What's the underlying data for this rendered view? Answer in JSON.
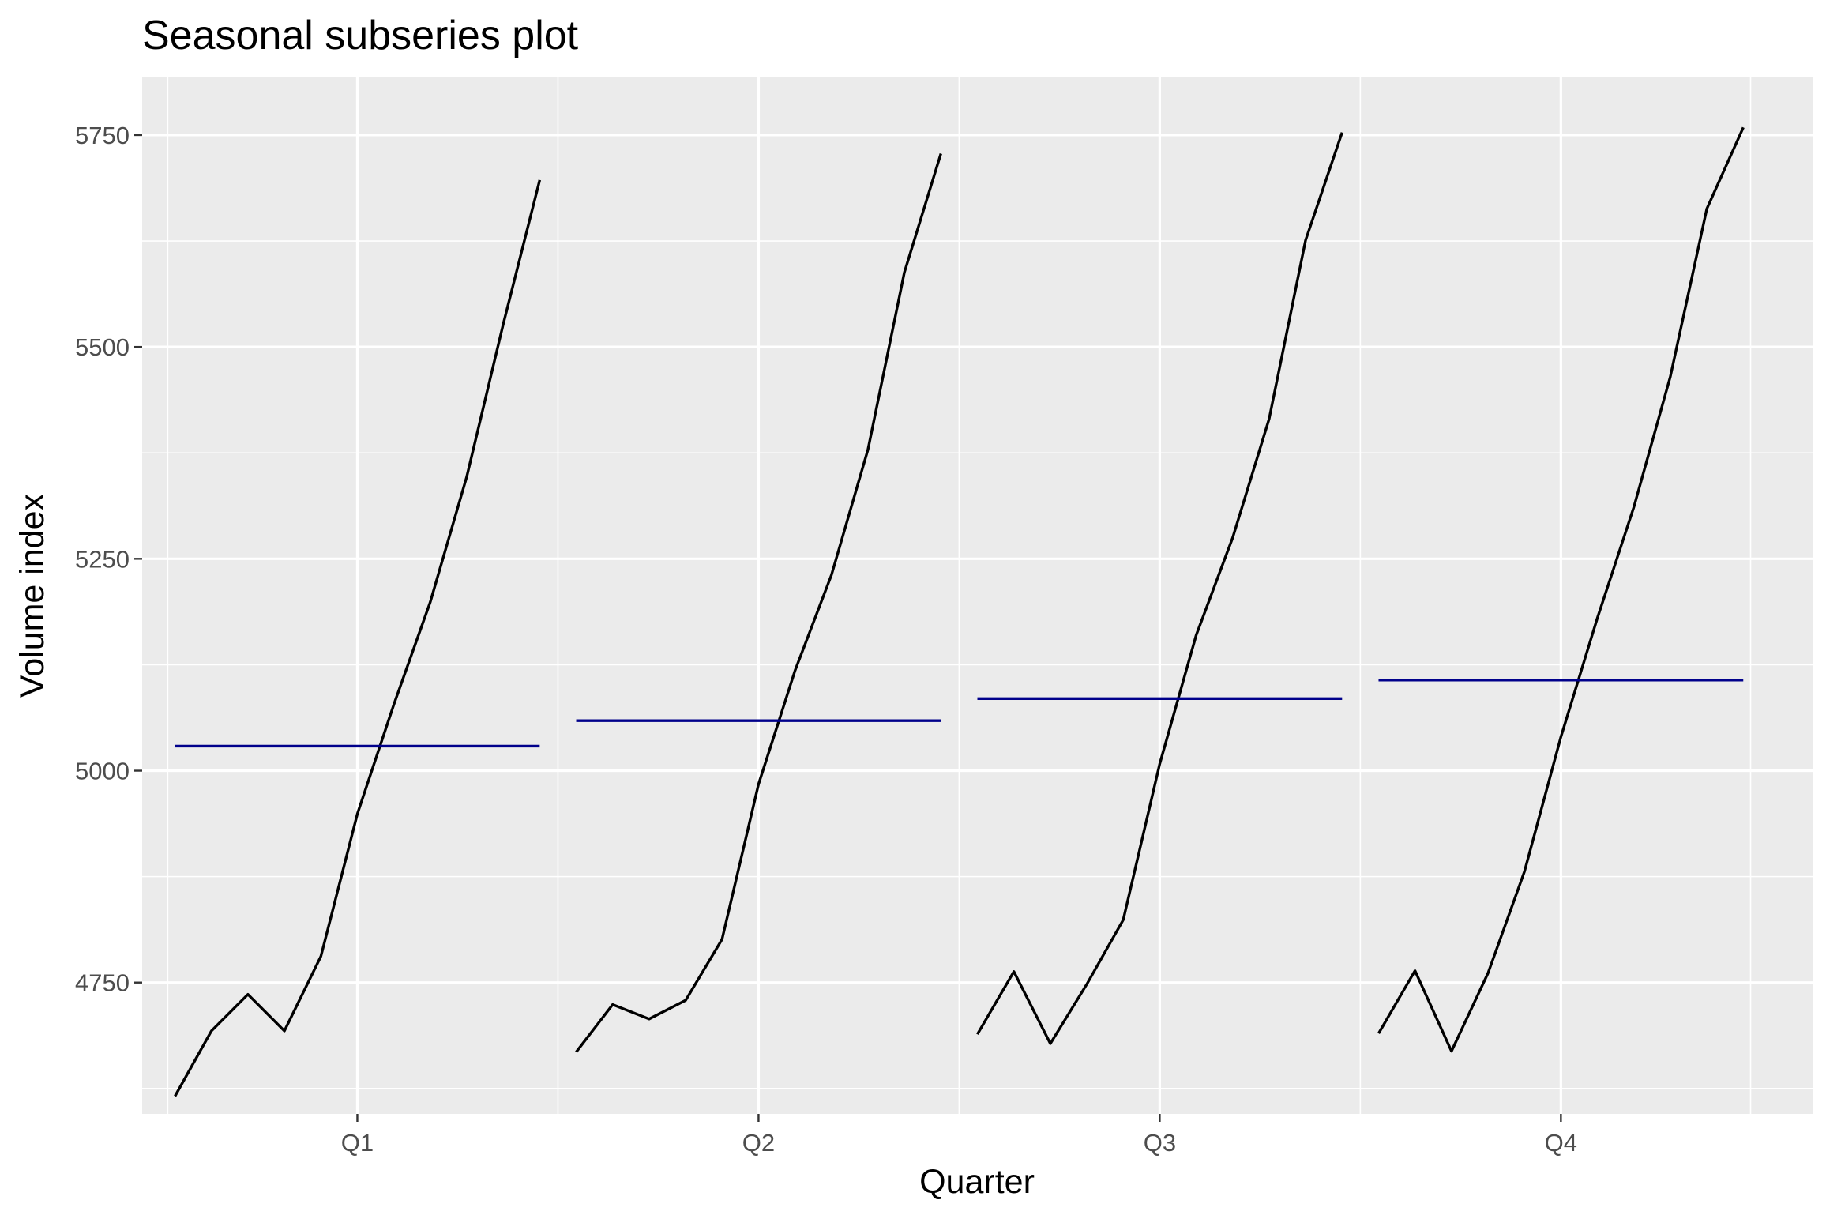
{
  "chart_data": {
    "type": "line",
    "title": "Seasonal subseries plot",
    "xlabel": "Quarter",
    "ylabel": "Volume index",
    "ylim": [
      4595,
      5818
    ],
    "yticks": [
      4750,
      5000,
      5250,
      5500,
      5750
    ],
    "grid": true,
    "legend": "none",
    "categories": [
      "Q1",
      "Q2",
      "Q3",
      "Q4"
    ],
    "colors": {
      "series": "#000000",
      "mean": "#00008b",
      "panel": "#ebebeb",
      "grid": "#ffffff"
    },
    "subseries": [
      {
        "category": "Q1",
        "mean": 5029,
        "values": [
          4616,
          4693,
          4736,
          4693,
          4781,
          4949,
          5078,
          5199,
          5347,
          5527,
          5697
        ]
      },
      {
        "category": "Q2",
        "mean": 5059,
        "values": [
          4668,
          4724,
          4707,
          4729,
          4801,
          4984,
          5118,
          5231,
          5379,
          5588,
          5728
        ]
      },
      {
        "category": "Q3",
        "mean": 5085,
        "values": [
          4689,
          4763,
          4678,
          4748,
          4824,
          5008,
          5160,
          5275,
          5415,
          5626,
          5753
        ]
      },
      {
        "category": "Q4",
        "mean": 5107,
        "values": [
          4690,
          4764,
          4669,
          4761,
          4881,
          5040,
          5180,
          5311,
          5465,
          5663,
          5759
        ]
      }
    ]
  }
}
